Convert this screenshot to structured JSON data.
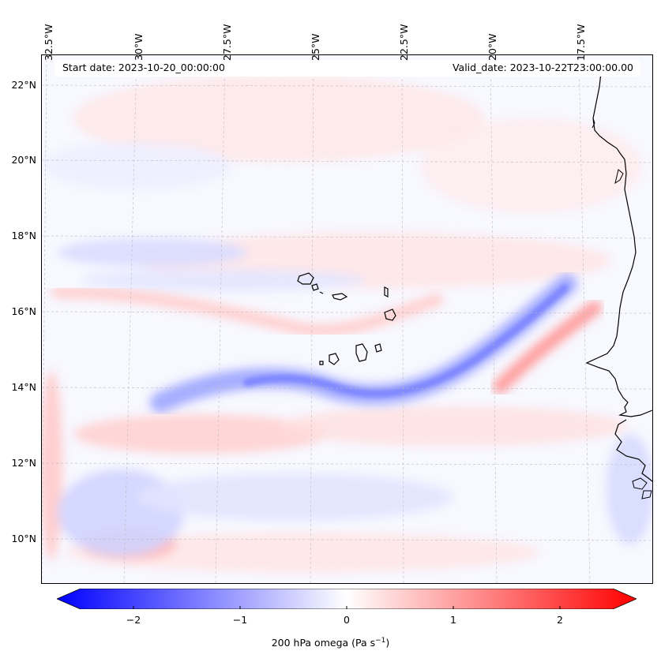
{
  "map": {
    "start_date": "Start date: 2023-10-20_00:00:00",
    "valid_date": "Valid_date: 2023-10-22T23:00:00.00",
    "lat_labels": [
      "22°N",
      "20°N",
      "18°N",
      "16°N",
      "14°N",
      "12°N",
      "10°N"
    ],
    "lon_labels": [
      "32.5°W",
      "30°W",
      "27.5°W",
      "25°W",
      "22.5°W",
      "20°W",
      "17.5°W"
    ],
    "variable": "200 hPa omega"
  },
  "colorbar": {
    "ticks": [
      "−2",
      "−1",
      "0",
      "1",
      "2"
    ],
    "title_main": "200 hPa omega (Pa s",
    "title_sup": "−1",
    "title_close": ")",
    "colors": {
      "min": "#0000ff",
      "mid": "#ffffff",
      "max": "#ff0000"
    },
    "range": [
      -2.6,
      2.6
    ]
  }
}
